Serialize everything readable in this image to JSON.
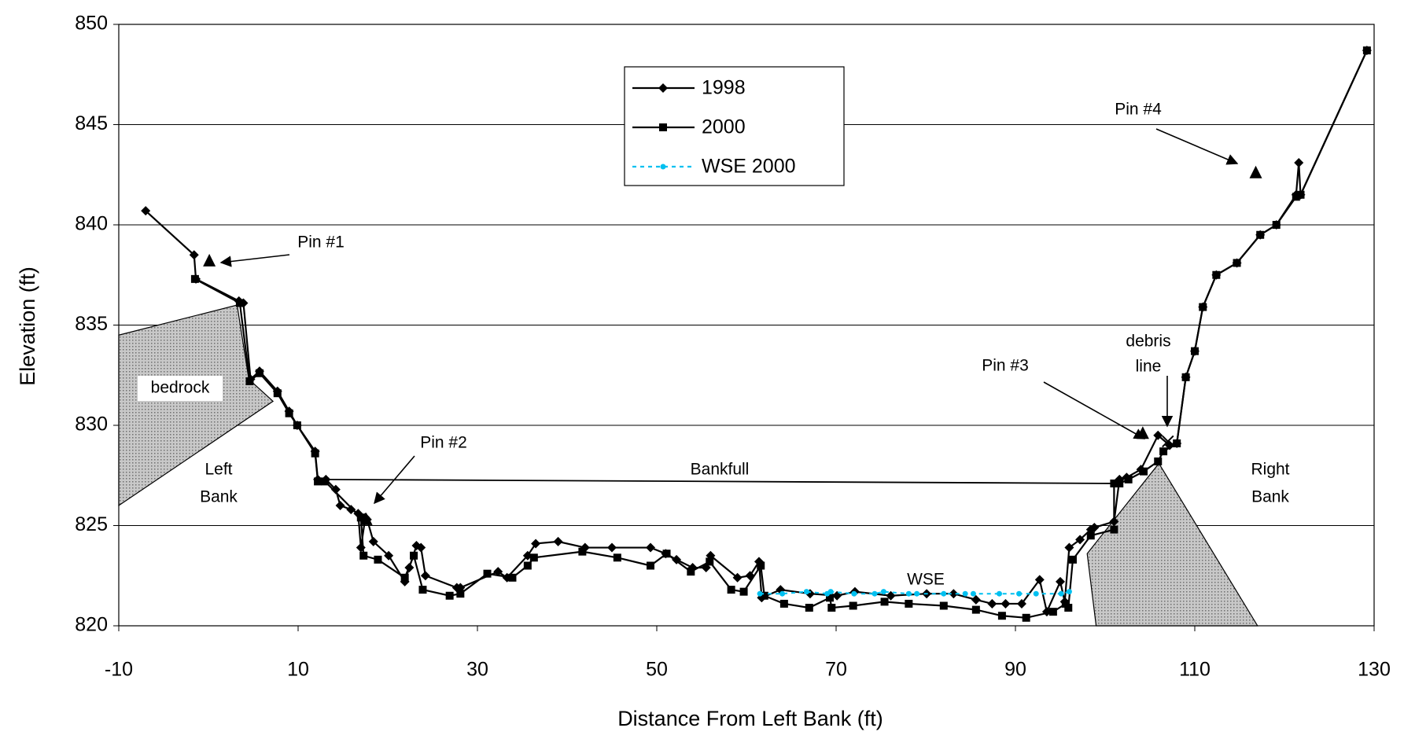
{
  "chart_data": {
    "type": "line",
    "xlabel": "Distance From Left Bank (ft)",
    "ylabel": "Elevation (ft)",
    "xlim": [
      -10,
      130
    ],
    "xticks": [
      -10,
      10,
      30,
      50,
      70,
      90,
      110,
      130
    ],
    "ylim": [
      820,
      850
    ],
    "yticks": [
      820,
      825,
      830,
      835,
      840,
      845,
      850
    ],
    "grid": true,
    "legend": "top-center",
    "series": [
      {
        "name": "1998",
        "color": "#000000",
        "marker": "diamond",
        "x": [
          -7.0,
          -1.6,
          -1.4,
          3.4,
          3.9,
          4.7,
          5.7,
          7.7,
          9.0,
          9.9,
          11.9,
          12.2,
          13.1,
          14.2,
          14.7,
          15.9,
          16.7,
          17.0,
          17.5,
          17.7,
          18.4,
          20.1,
          21.9,
          22.4,
          23.2,
          23.7,
          24.2,
          27.7,
          28.1,
          32.3,
          33.3,
          35.6,
          36.5,
          39.0,
          42.0,
          45.0,
          49.3,
          51.0,
          52.2,
          54.0,
          55.5,
          56.0,
          59.0,
          60.4,
          61.4,
          61.7,
          63.8,
          67.1,
          70.1,
          72.1,
          76.1,
          80.1,
          83.1,
          85.6,
          87.4,
          88.9,
          90.7,
          92.7,
          93.5,
          95.0,
          95.5,
          96.0,
          97.2,
          98.4,
          98.8,
          101.0,
          101.6,
          102.4,
          104.0,
          105.9,
          107.2,
          108.0,
          109.0,
          110.0,
          110.9,
          112.4,
          114.7,
          117.3,
          119.1,
          121.3,
          121.6,
          121.8,
          129.2
        ],
        "values": [
          840.7,
          838.5,
          837.3,
          836.2,
          836.1,
          832.3,
          832.7,
          831.7,
          830.7,
          830.0,
          828.7,
          827.3,
          827.3,
          826.8,
          826.0,
          825.8,
          825.6,
          823.9,
          825.4,
          825.3,
          824.2,
          823.5,
          822.2,
          822.9,
          824.0,
          823.9,
          822.5,
          821.9,
          821.9,
          822.7,
          822.4,
          823.5,
          824.1,
          824.2,
          823.9,
          823.9,
          823.9,
          823.6,
          823.3,
          822.9,
          822.9,
          823.5,
          822.4,
          822.5,
          823.2,
          821.4,
          821.8,
          821.6,
          821.5,
          821.7,
          821.5,
          821.6,
          821.6,
          821.3,
          821.1,
          821.1,
          821.1,
          822.3,
          820.7,
          822.2,
          821.2,
          823.9,
          824.3,
          824.8,
          824.9,
          825.2,
          827.3,
          827.4,
          827.8,
          829.5,
          829.0,
          829.1,
          832.4,
          833.7,
          835.9,
          837.5,
          838.1,
          839.5,
          840.0,
          841.5,
          843.1,
          841.5,
          848.7
        ]
      },
      {
        "name": "2000",
        "color": "#000000",
        "marker": "square",
        "x": [
          -1.5,
          3.5,
          4.6,
          5.7,
          7.7,
          9.0,
          9.9,
          11.9,
          12.2,
          13.0,
          17.0,
          17.3,
          18.9,
          21.9,
          22.9,
          23.9,
          26.9,
          28.1,
          31.1,
          33.9,
          35.6,
          36.3,
          41.7,
          45.6,
          49.3,
          51.1,
          53.8,
          55.9,
          58.3,
          59.7,
          61.6,
          62.0,
          64.2,
          67.0,
          69.3,
          69.5,
          71.9,
          75.4,
          78.1,
          82.0,
          85.6,
          88.5,
          91.2,
          94.2,
          95.6,
          95.9,
          96.4,
          98.4,
          101.0,
          101.0,
          101.6,
          102.6,
          104.3,
          105.9,
          106.5,
          108.0,
          109.0,
          110.0,
          110.9,
          112.4,
          114.7,
          117.3,
          119.1,
          121.3,
          121.8,
          129.2
        ],
        "values": [
          837.3,
          836.1,
          832.2,
          832.6,
          831.6,
          830.6,
          830.0,
          828.6,
          827.2,
          827.2,
          825.4,
          823.5,
          823.3,
          822.4,
          823.5,
          821.8,
          821.5,
          821.6,
          822.6,
          822.4,
          823.0,
          823.4,
          823.7,
          823.4,
          823.0,
          823.6,
          822.7,
          823.2,
          821.8,
          821.7,
          823.0,
          821.5,
          821.1,
          820.9,
          821.4,
          820.9,
          821.0,
          821.2,
          821.1,
          821.0,
          820.8,
          820.5,
          820.4,
          820.7,
          821.1,
          820.9,
          823.3,
          824.5,
          824.8,
          827.1,
          827.1,
          827.3,
          827.7,
          828.2,
          828.7,
          829.1,
          832.4,
          833.7,
          835.9,
          837.5,
          838.1,
          839.5,
          840.0,
          841.4,
          841.5,
          848.7
        ]
      },
      {
        "name": "WSE 2000",
        "color": "#00c0f0",
        "marker": "circle",
        "dashed": true,
        "x": [
          61.5,
          64.0,
          66.7,
          69.0,
          69.4,
          72.0,
          74.3,
          75.3,
          78.1,
          79.0,
          82.0,
          84.4,
          85.3,
          88.2,
          90.4,
          92.3,
          95.1,
          96.0
        ],
        "values": [
          821.6,
          821.6,
          821.7,
          821.6,
          821.7,
          821.6,
          821.6,
          821.7,
          821.6,
          821.6,
          821.6,
          821.6,
          821.6,
          821.6,
          821.6,
          821.6,
          821.6,
          821.7
        ]
      }
    ],
    "pins": [
      {
        "label": "Pin #1",
        "x": 0.1,
        "y": 838.2
      },
      {
        "label": "Pin #2",
        "x": 17.6,
        "y": 825.3
      },
      {
        "label": "Pin #3",
        "x": 104.2,
        "y": 829.6
      },
      {
        "label": "Pin #4",
        "x": 116.8,
        "y": 842.6
      }
    ],
    "debris": {
      "label": [
        "debris",
        "line"
      ],
      "x": 107.0,
      "y": 829.2
    },
    "bankfull": {
      "label": "Bankfull",
      "x": [
        12.9,
        101.0
      ],
      "y": [
        827.3,
        827.1
      ]
    },
    "wse_label": "WSE",
    "regions": [
      {
        "label": "bedrock",
        "x": [
          -10,
          3.2,
          4.5,
          7.2,
          -10
        ],
        "y": [
          834.5,
          836.0,
          832.3,
          831.2,
          826.0
        ]
      },
      {
        "x": [
          98.0,
          106.0,
          117.0,
          99.0
        ],
        "y": [
          823.6,
          828.1,
          820.0,
          820.0
        ]
      }
    ],
    "bank_labels": [
      [
        "Left",
        "Bank"
      ],
      [
        "Right",
        "Bank"
      ]
    ]
  }
}
